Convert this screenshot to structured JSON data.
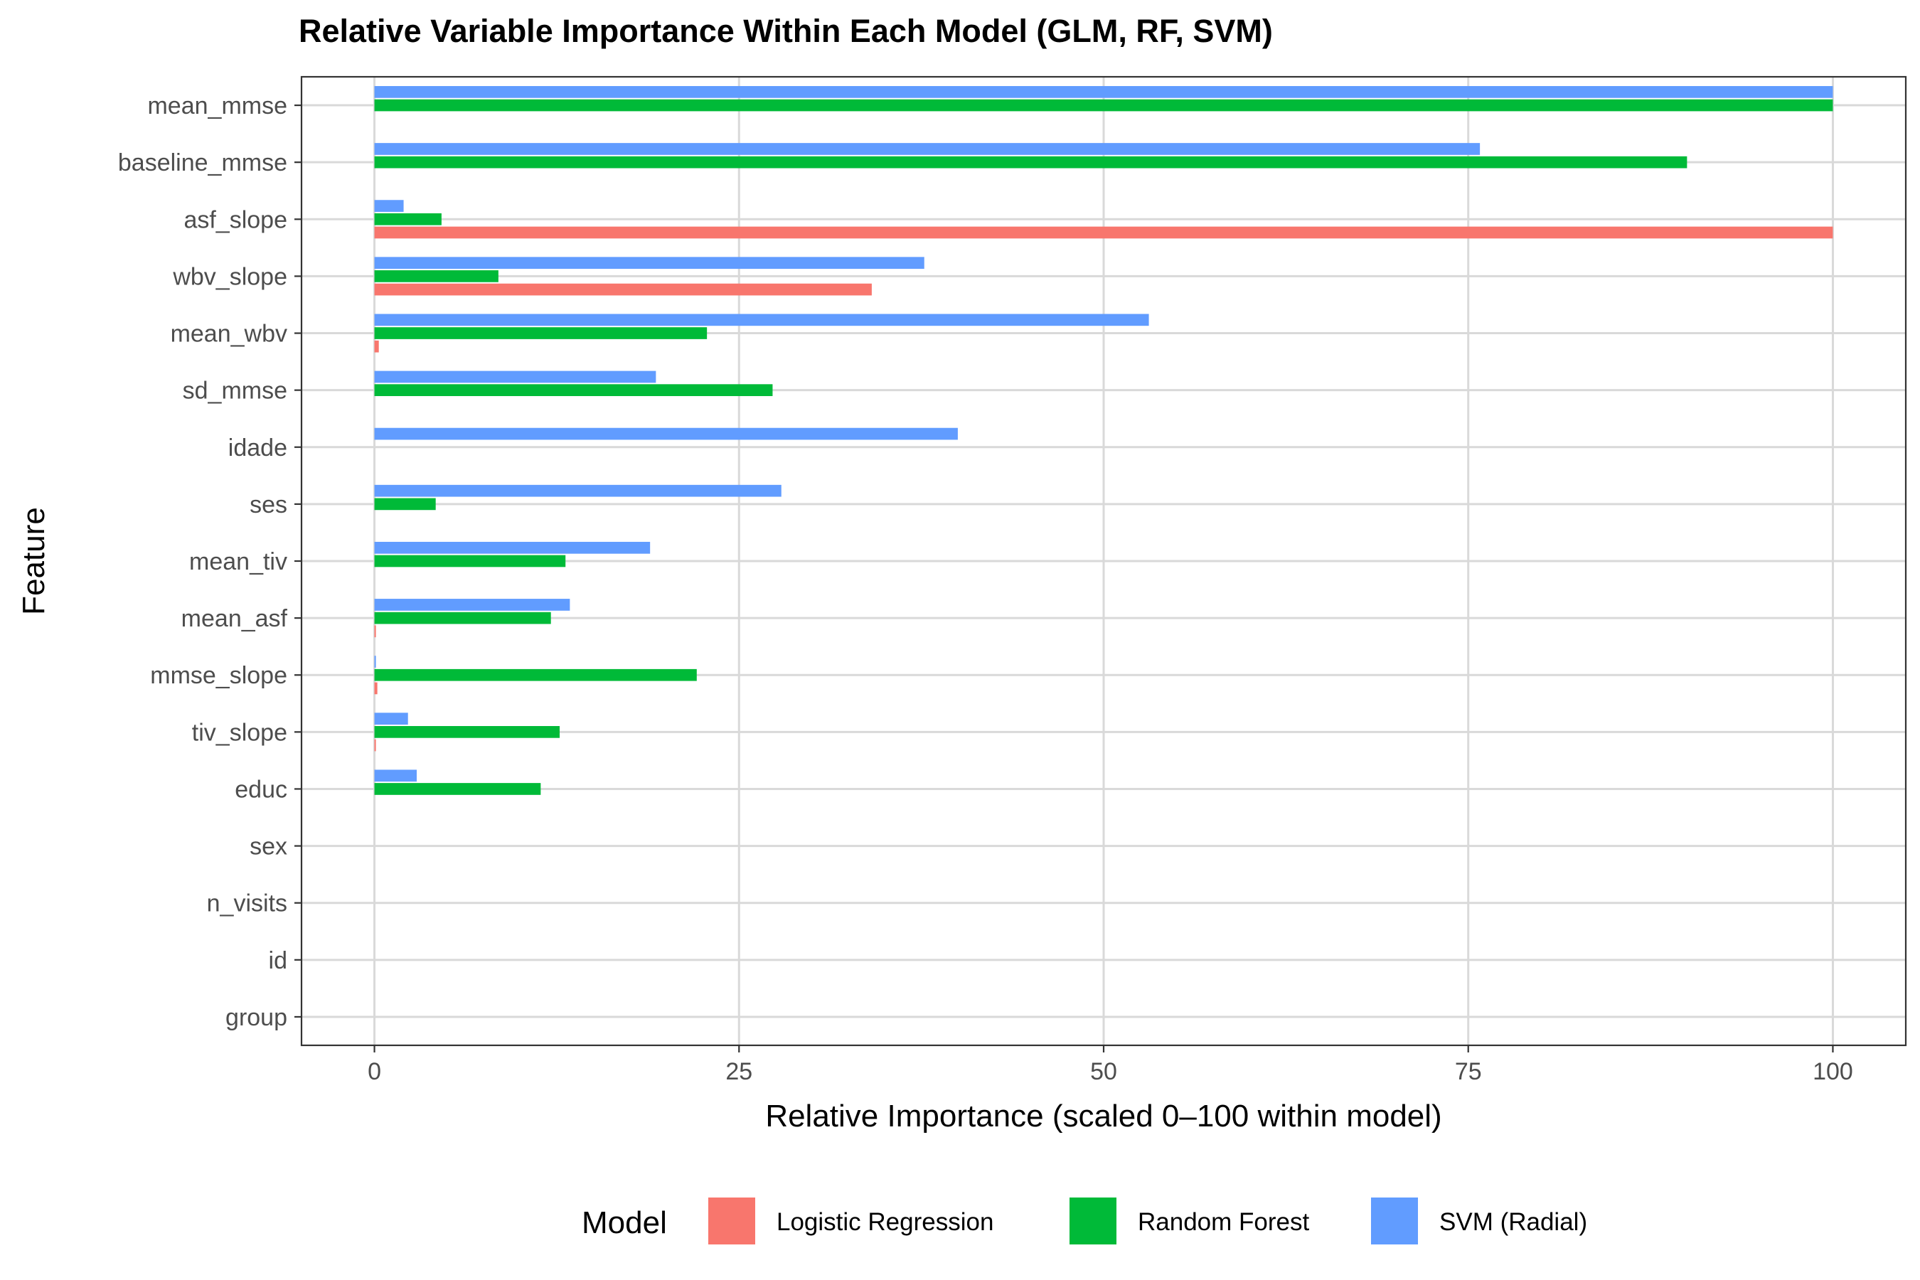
{
  "chart_data": {
    "type": "bar",
    "orientation": "horizontal",
    "title": "Relative Variable Importance Within Each Model (GLM, RF, SVM)",
    "xlabel": "Relative Importance (scaled 0–100 within model)",
    "ylabel": "Feature",
    "xlim": [
      -5,
      105
    ],
    "xticks": [
      0,
      25,
      50,
      75,
      100
    ],
    "xtick_labels": [
      "0",
      "25",
      "50",
      "75",
      "100"
    ],
    "grid": true,
    "legend": {
      "title": "Model",
      "position": "bottom"
    },
    "categories": [
      "mean_mmse",
      "baseline_mmse",
      "asf_slope",
      "wbv_slope",
      "mean_wbv",
      "sd_mmse",
      "idade",
      "ses",
      "mean_tiv",
      "mean_asf",
      "mmse_slope",
      "tiv_slope",
      "educ",
      "sex",
      "n_visits",
      "id",
      "group"
    ],
    "series": [
      {
        "name": "Logistic Regression",
        "color": "#F8766D",
        "values": [
          0,
          0,
          100,
          34.1,
          0.3,
          0,
          0,
          0,
          0,
          0.1,
          0.2,
          0.1,
          0,
          0,
          0,
          0,
          0
        ]
      },
      {
        "name": "Random Forest",
        "color": "#00BA38",
        "values": [
          100,
          90,
          4.6,
          8.5,
          22.8,
          27.3,
          0,
          4.2,
          13.1,
          12.1,
          22.1,
          12.7,
          11.4,
          0,
          0,
          0,
          0
        ]
      },
      {
        "name": "SVM (Radial)",
        "color": "#619CFF",
        "values": [
          100,
          75.8,
          2,
          37.7,
          53.1,
          19.3,
          40,
          27.9,
          18.9,
          13.4,
          0.1,
          2.3,
          2.9,
          0,
          0,
          0,
          0
        ]
      }
    ]
  }
}
